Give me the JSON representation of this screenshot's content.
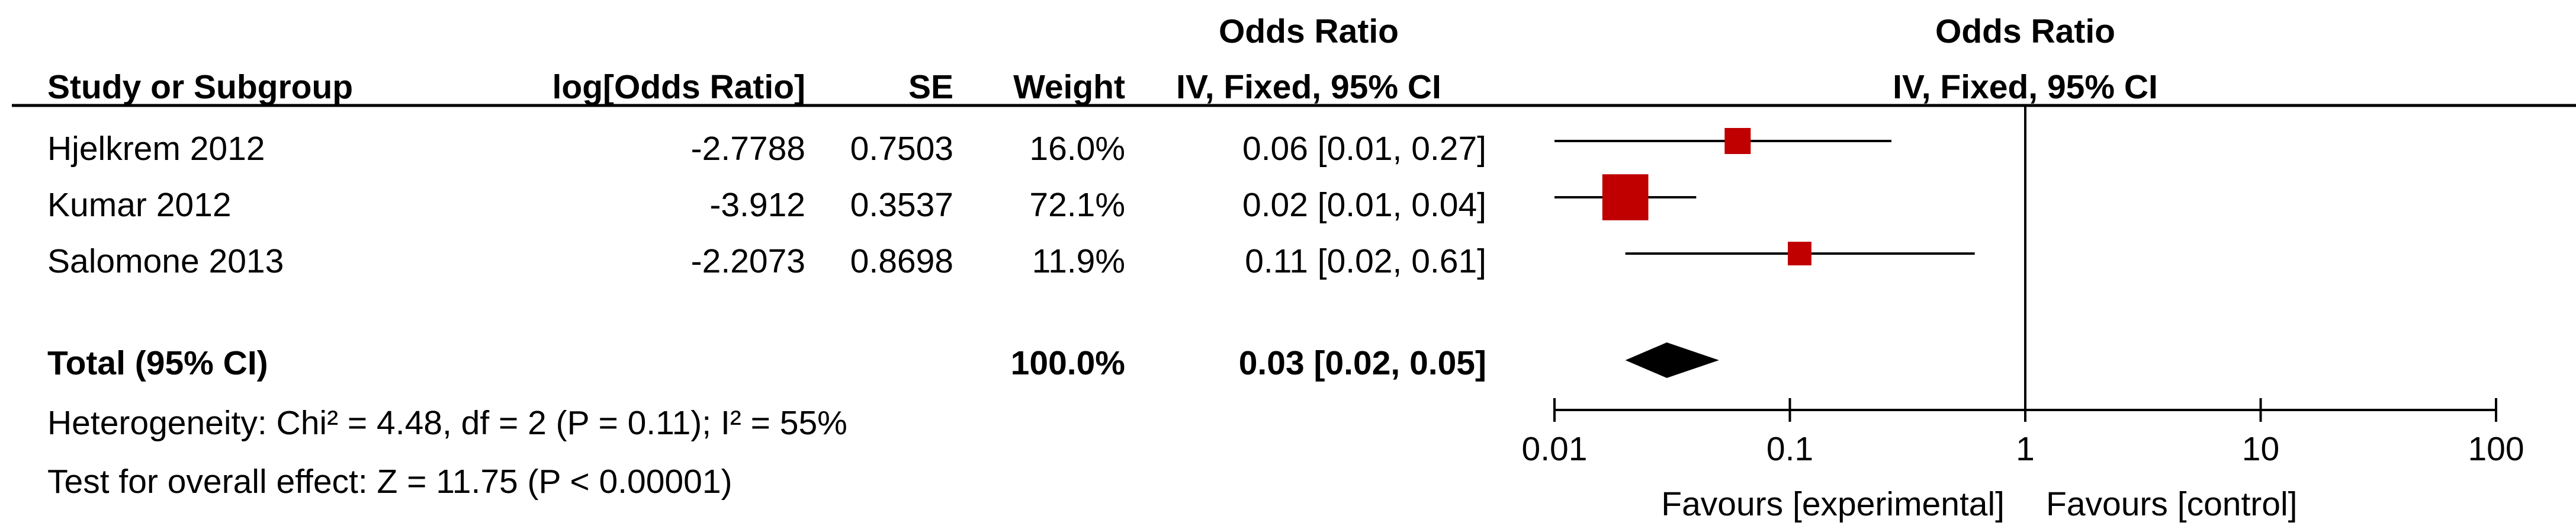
{
  "headers": {
    "study": "Study or Subgroup",
    "log_or": "log[Odds Ratio]",
    "se": "SE",
    "weight": "Weight",
    "or_title": "Odds Ratio",
    "or_method": "IV, Fixed, 95% CI",
    "plot_title": "Odds Ratio",
    "plot_method": "IV, Fixed, 95% CI"
  },
  "studies": [
    {
      "name": "Hjelkrem 2012",
      "log_or": "-2.7788",
      "se": "0.7503",
      "weight": "16.0%",
      "ci_text": "0.06 [0.01, 0.27]"
    },
    {
      "name": "Kumar 2012",
      "log_or": "-3.912",
      "se": "0.3537",
      "weight": "72.1%",
      "ci_text": "0.02 [0.01, 0.04]"
    },
    {
      "name": "Salomone 2013",
      "log_or": "-2.2073",
      "se": "0.8698",
      "weight": "11.9%",
      "ci_text": "0.11 [0.02, 0.61]"
    }
  ],
  "total": {
    "label": "Total (95% CI)",
    "weight": "100.0%",
    "ci_text": "0.03 [0.02, 0.05]"
  },
  "heterogeneity": "Heterogeneity: Chi² = 4.48, df = 2 (P = 0.11); I² = 55%",
  "overall_effect": "Test for overall effect: Z = 11.75 (P < 0.00001)",
  "axis": {
    "ticks": [
      0.01,
      0.1,
      1,
      10,
      100
    ],
    "tick_labels": [
      "0.01",
      "0.1",
      "1",
      "10",
      "100"
    ],
    "favours_left": "Favours [experimental]",
    "favours_right": "Favours [control]"
  },
  "colors": {
    "marker": "#c00000",
    "diamond": "#000000",
    "line": "#000000"
  },
  "chart_data": {
    "type": "forest",
    "scale": "log",
    "xlim": [
      0.01,
      100
    ],
    "null_value": 1,
    "series": [
      {
        "name": "Hjelkrem 2012",
        "or": 0.06,
        "ci_low": 0.01,
        "ci_high": 0.27,
        "weight": 16.0
      },
      {
        "name": "Kumar 2012",
        "or": 0.02,
        "ci_low": 0.01,
        "ci_high": 0.04,
        "weight": 72.1
      },
      {
        "name": "Salomone 2013",
        "or": 0.11,
        "ci_low": 0.02,
        "ci_high": 0.61,
        "weight": 11.9
      }
    ],
    "pooled": {
      "name": "Total (95% CI)",
      "or": 0.03,
      "ci_low": 0.02,
      "ci_high": 0.05,
      "weight": 100.0
    }
  }
}
